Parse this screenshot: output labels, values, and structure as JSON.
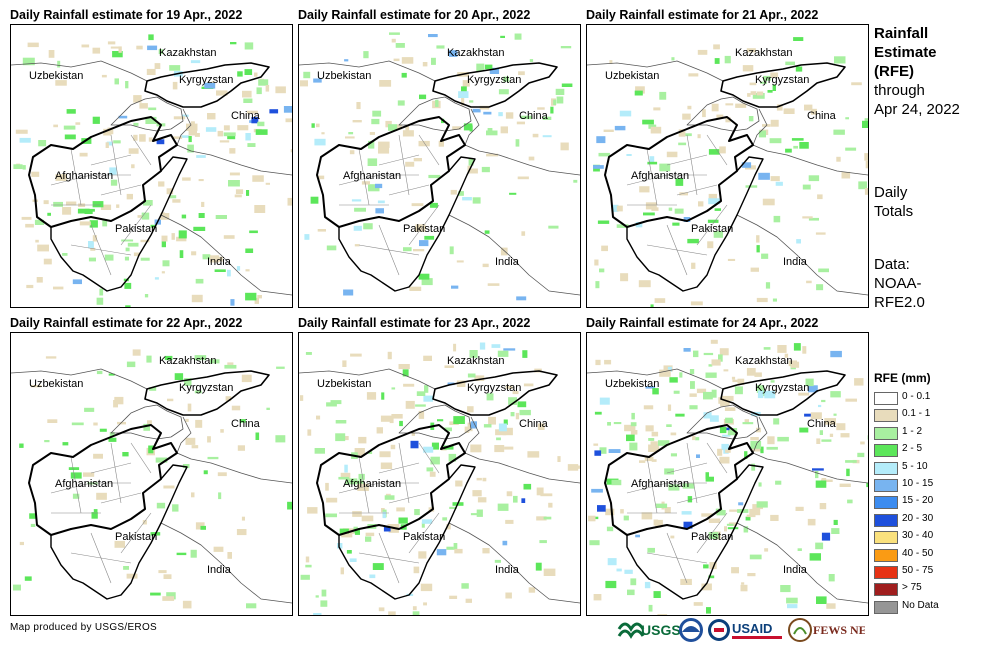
{
  "panels": [
    {
      "title": "Daily Rainfall estimate for 19 Apr., 2022",
      "rain": 0.85
    },
    {
      "title": "Daily Rainfall estimate for 20 Apr., 2022",
      "rain": 0.55
    },
    {
      "title": "Daily Rainfall estimate for 21 Apr., 2022",
      "rain": 0.6
    },
    {
      "title": "Daily Rainfall estimate for 22 Apr., 2022",
      "rain": 0.4
    },
    {
      "title": "Daily Rainfall estimate for 23 Apr., 2022",
      "rain": 0.75
    },
    {
      "title": "Daily Rainfall estimate for 24 Apr., 2022",
      "rain": 0.95
    }
  ],
  "countries": {
    "kazakhstan": "Kazakhstan",
    "uzbekistan": "Uzbekistan",
    "kyrgyzstan": "Kyrgyzstan",
    "china": "China",
    "afghanistan": "Afghanistan",
    "pakistan": "Pakistan",
    "india": "India"
  },
  "side": {
    "title1": "Rainfall",
    "title2": "Estimate",
    "title3": "(RFE)",
    "through": "through",
    "date": "Apr 24, 2022",
    "daily": "Daily",
    "totals": "Totals",
    "data1": "Data:",
    "data2": "NOAA-",
    "data3": "RFE2.0"
  },
  "legend": {
    "title": "RFE (mm)",
    "items": [
      {
        "label": "0 - 0.1",
        "color": "#ffffff"
      },
      {
        "label": "0.1 - 1",
        "color": "#e8dcbc"
      },
      {
        "label": "1 - 2",
        "color": "#a8f0a0"
      },
      {
        "label": "2 - 5",
        "color": "#5ce65a"
      },
      {
        "label": "5 - 10",
        "color": "#b4ecfa"
      },
      {
        "label": "10 - 15",
        "color": "#78b4f0"
      },
      {
        "label": "15 - 20",
        "color": "#3c8cf0"
      },
      {
        "label": "20 - 30",
        "color": "#1e50dc"
      },
      {
        "label": "30 - 40",
        "color": "#fae17d"
      },
      {
        "label": "40 - 50",
        "color": "#fa9b14"
      },
      {
        "label": "50 - 75",
        "color": "#e63214"
      },
      {
        "label": "> 75",
        "color": "#a01e1e"
      },
      {
        "label": "No Data",
        "color": "#969696"
      }
    ]
  },
  "credit": "Map produced by USGS/EROS",
  "logos": {
    "usgs": "USGS",
    "usaid": "USAID",
    "fewsnet": "FEWS NET"
  }
}
